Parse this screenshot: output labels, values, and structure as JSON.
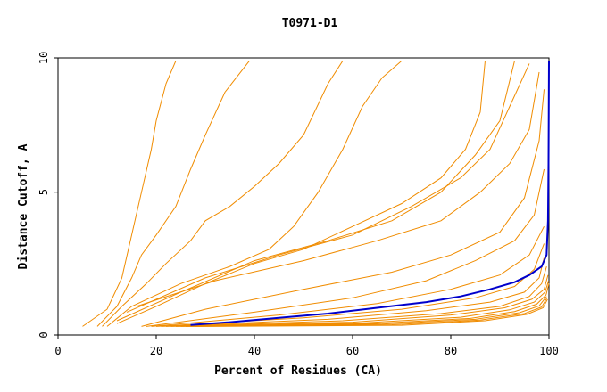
{
  "chart_data": {
    "type": "line",
    "title": "T0971-D1",
    "xlabel": "Percent of Residues (CA)",
    "ylabel": "Distance Cutoff, A",
    "xlim": [
      0,
      100
    ],
    "ylim": [
      0,
      10
    ],
    "xticks": [
      "0",
      "20",
      "40",
      "60",
      "80",
      "100"
    ],
    "yticks": [
      "0",
      "5",
      "10"
    ],
    "colors": {
      "others": "#f08c00",
      "highlight": "#0000cc"
    },
    "series": [
      {
        "values": [
          [
            5,
            0.3
          ],
          [
            10,
            0.9
          ],
          [
            13,
            2
          ],
          [
            15,
            3.5
          ],
          [
            17,
            5
          ],
          [
            19,
            6.5
          ],
          [
            20,
            7.5
          ],
          [
            22,
            8.8
          ],
          [
            24,
            9.6
          ]
        ]
      },
      {
        "values": [
          [
            8,
            0.3
          ],
          [
            12,
            1
          ],
          [
            15,
            2
          ],
          [
            17,
            2.8
          ],
          [
            20,
            3.5
          ],
          [
            24,
            4.5
          ],
          [
            27,
            5.8
          ],
          [
            30,
            7
          ],
          [
            34,
            8.5
          ],
          [
            39,
            9.6
          ]
        ]
      },
      {
        "values": [
          [
            9,
            0.3
          ],
          [
            13,
            1
          ],
          [
            18,
            1.8
          ],
          [
            22,
            2.5
          ],
          [
            27,
            3.3
          ],
          [
            30,
            4
          ],
          [
            35,
            4.5
          ],
          [
            40,
            5.2
          ],
          [
            45,
            6
          ],
          [
            50,
            7
          ],
          [
            55,
            8.8
          ],
          [
            58,
            9.6
          ]
        ]
      },
      {
        "values": [
          [
            10,
            0.3
          ],
          [
            15,
            1
          ],
          [
            25,
            1.8
          ],
          [
            35,
            2.4
          ],
          [
            43,
            3
          ],
          [
            48,
            3.8
          ],
          [
            53,
            5
          ],
          [
            58,
            6.5
          ],
          [
            62,
            8
          ],
          [
            66,
            9
          ],
          [
            70,
            9.6
          ]
        ]
      },
      {
        "values": [
          [
            12,
            0.4
          ],
          [
            20,
            1
          ],
          [
            30,
            1.8
          ],
          [
            40,
            2.5
          ],
          [
            50,
            3
          ],
          [
            60,
            3.8
          ],
          [
            70,
            4.6
          ],
          [
            78,
            5.5
          ],
          [
            83,
            6.5
          ],
          [
            86,
            7.8
          ],
          [
            87,
            9.6
          ]
        ]
      },
      {
        "values": [
          [
            12,
            0.5
          ],
          [
            25,
            1.5
          ],
          [
            40,
            2.6
          ],
          [
            55,
            3.3
          ],
          [
            68,
            4
          ],
          [
            78,
            5
          ],
          [
            85,
            6.3
          ],
          [
            90,
            7.5
          ],
          [
            93,
            9.6
          ]
        ]
      },
      {
        "values": [
          [
            14,
            0.8
          ],
          [
            30,
            2
          ],
          [
            45,
            2.8
          ],
          [
            60,
            3.5
          ],
          [
            72,
            4.5
          ],
          [
            82,
            5.5
          ],
          [
            88,
            6.5
          ],
          [
            92,
            8
          ],
          [
            96,
            9.5
          ]
        ]
      },
      {
        "values": [
          [
            16,
            1
          ],
          [
            32,
            1.9
          ],
          [
            50,
            2.6
          ],
          [
            65,
            3.3
          ],
          [
            78,
            4
          ],
          [
            86,
            5
          ],
          [
            92,
            6
          ],
          [
            96,
            7.2
          ],
          [
            98,
            9.2
          ]
        ]
      },
      {
        "values": [
          [
            17,
            0.3
          ],
          [
            30,
            0.9
          ],
          [
            50,
            1.6
          ],
          [
            68,
            2.2
          ],
          [
            80,
            2.8
          ],
          [
            90,
            3.6
          ],
          [
            95,
            4.8
          ],
          [
            98,
            6.8
          ],
          [
            99,
            8.6
          ]
        ]
      },
      {
        "values": [
          [
            18,
            0.3
          ],
          [
            40,
            0.8
          ],
          [
            60,
            1.3
          ],
          [
            75,
            1.9
          ],
          [
            85,
            2.6
          ],
          [
            93,
            3.3
          ],
          [
            97,
            4.2
          ],
          [
            99,
            5.8
          ]
        ]
      },
      {
        "values": [
          [
            19,
            0.3
          ],
          [
            45,
            0.7
          ],
          [
            65,
            1.1
          ],
          [
            80,
            1.6
          ],
          [
            90,
            2.1
          ],
          [
            96,
            2.8
          ],
          [
            99,
            3.8
          ]
        ]
      },
      {
        "values": [
          [
            20,
            0.3
          ],
          [
            50,
            0.6
          ],
          [
            70,
            0.9
          ],
          [
            85,
            1.3
          ],
          [
            93,
            1.7
          ],
          [
            97,
            2.3
          ],
          [
            99,
            3.2
          ]
        ]
      },
      {
        "values": [
          [
            21,
            0.3
          ],
          [
            55,
            0.55
          ],
          [
            75,
            0.85
          ],
          [
            88,
            1.15
          ],
          [
            95,
            1.5
          ],
          [
            98,
            2
          ],
          [
            99,
            2.7
          ]
        ]
      },
      {
        "values": [
          [
            22,
            0.3
          ],
          [
            58,
            0.5
          ],
          [
            78,
            0.75
          ],
          [
            90,
            1
          ],
          [
            96,
            1.35
          ],
          [
            98.5,
            1.8
          ],
          [
            99.5,
            2.4
          ]
        ]
      },
      {
        "values": [
          [
            23,
            0.3
          ],
          [
            60,
            0.45
          ],
          [
            80,
            0.7
          ],
          [
            91,
            0.95
          ],
          [
            96.5,
            1.25
          ],
          [
            99,
            1.6
          ],
          [
            99.8,
            2.1
          ]
        ]
      },
      {
        "values": [
          [
            24,
            0.3
          ],
          [
            62,
            0.42
          ],
          [
            82,
            0.62
          ],
          [
            92,
            0.88
          ],
          [
            97,
            1.15
          ],
          [
            99.2,
            1.5
          ],
          [
            99.9,
            1.9
          ]
        ]
      },
      {
        "values": [
          [
            25,
            0.3
          ],
          [
            64,
            0.4
          ],
          [
            84,
            0.58
          ],
          [
            93,
            0.82
          ],
          [
            97.5,
            1.08
          ],
          [
            99.4,
            1.4
          ],
          [
            100,
            1.8
          ]
        ]
      },
      {
        "values": [
          [
            26,
            0.3
          ],
          [
            66,
            0.38
          ],
          [
            85,
            0.55
          ],
          [
            94,
            0.78
          ],
          [
            98,
            1.02
          ],
          [
            99.5,
            1.35
          ]
        ]
      },
      {
        "values": [
          [
            27,
            0.3
          ],
          [
            68,
            0.36
          ],
          [
            86,
            0.52
          ],
          [
            95,
            0.75
          ],
          [
            98.5,
            0.98
          ],
          [
            99.6,
            1.3
          ]
        ]
      },
      {
        "values": [
          [
            28,
            0.3
          ],
          [
            70,
            0.34
          ],
          [
            87,
            0.5
          ],
          [
            95.5,
            0.72
          ],
          [
            98.8,
            0.95
          ],
          [
            99.7,
            1.25
          ]
        ]
      }
    ],
    "highlight_series": {
      "values": [
        [
          27,
          0.35
        ],
        [
          35,
          0.45
        ],
        [
          45,
          0.6
        ],
        [
          55,
          0.75
        ],
        [
          65,
          0.95
        ],
        [
          75,
          1.15
        ],
        [
          82,
          1.35
        ],
        [
          88,
          1.6
        ],
        [
          93,
          1.85
        ],
        [
          96,
          2.1
        ],
        [
          98.5,
          2.4
        ],
        [
          99.5,
          2.8
        ],
        [
          99.8,
          4
        ],
        [
          99.9,
          6
        ],
        [
          100,
          9.6
        ]
      ]
    }
  }
}
